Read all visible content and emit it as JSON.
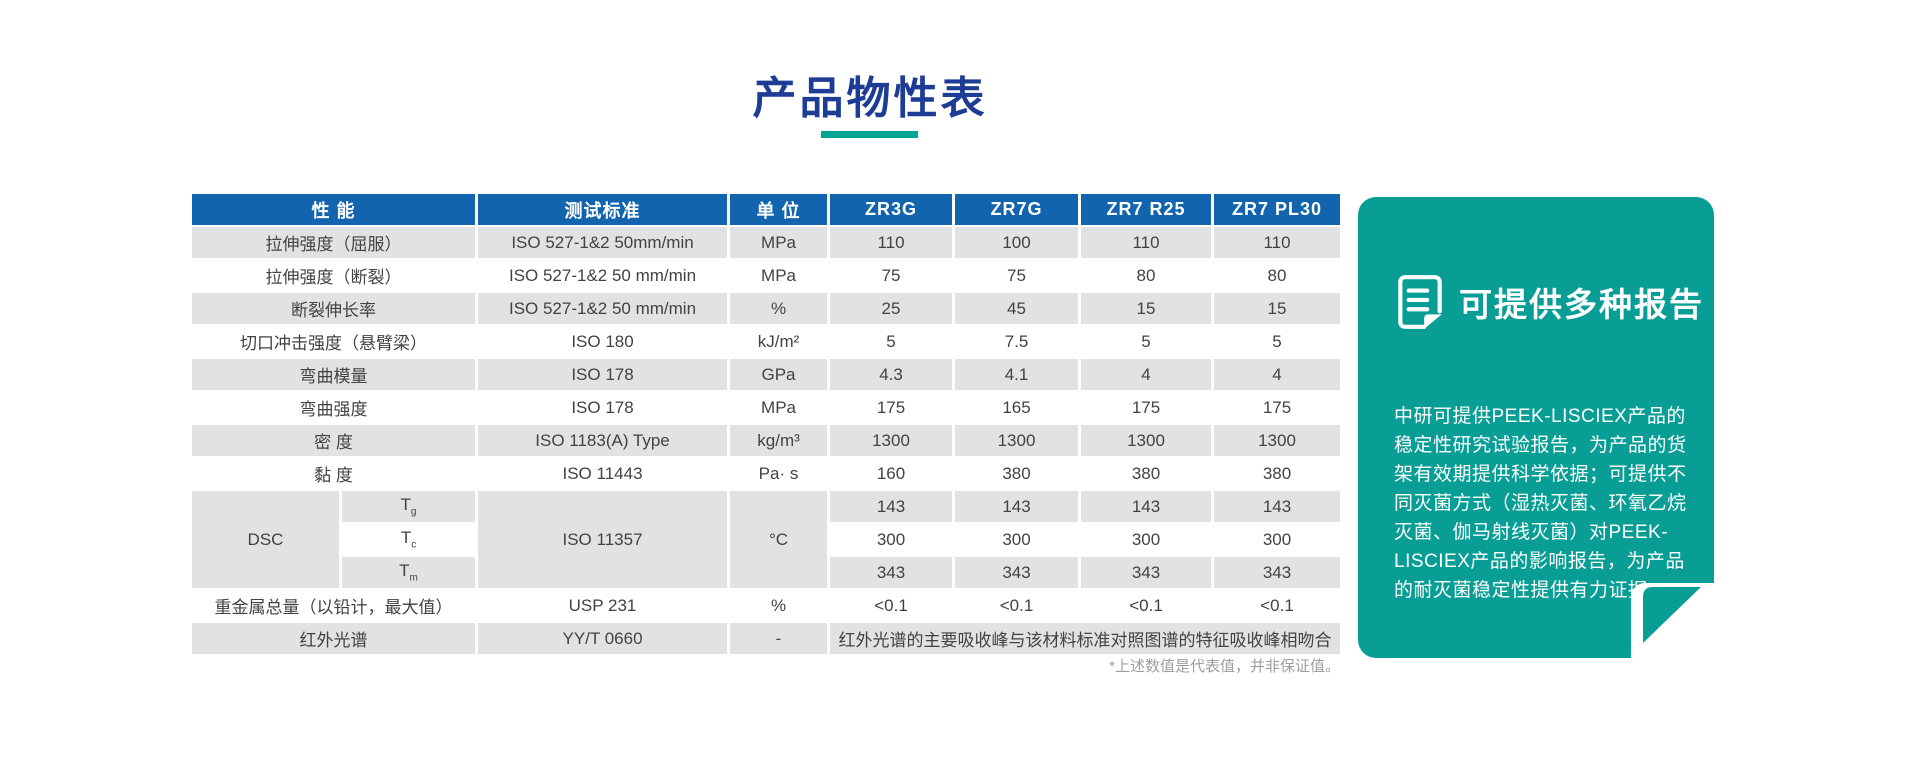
{
  "page": {
    "title": "产品物性表",
    "footnote": "*上述数值是代表值，并非保证值。"
  },
  "colors": {
    "title_blue": "#1C3C96",
    "accent_teal": "#00A596",
    "table_header_blue": "#1364AE",
    "row_gray": "#E1E2E4",
    "card_teal": "#089E95",
    "cell_text": "#404245",
    "footnote_gray": "#9E9E9E"
  },
  "table": {
    "headers": [
      "性 能",
      "测试标准",
      "单 位",
      "ZR3G",
      "ZR7G",
      "ZR7 R25",
      "ZR7 PL30"
    ],
    "shades": [
      "gray",
      "white",
      "gray",
      "white",
      "gray",
      "white",
      "gray",
      "white",
      "gray",
      "white",
      "gray",
      "white",
      "gray"
    ],
    "rows": [
      [
        {
          "t": "拉伸强度（屈服）",
          "col": 2
        },
        {
          "t": "ISO 527-1&2 50mm/min"
        },
        {
          "t": "MPa"
        },
        {
          "t": "110"
        },
        {
          "t": "100"
        },
        {
          "t": "110"
        },
        {
          "t": "110"
        }
      ],
      [
        {
          "t": "拉伸强度（断裂）",
          "col": 2
        },
        {
          "t": "ISO 527-1&2 50 mm/min"
        },
        {
          "t": "MPa"
        },
        {
          "t": "75"
        },
        {
          "t": "75"
        },
        {
          "t": "80"
        },
        {
          "t": "80"
        }
      ],
      [
        {
          "t": "断裂伸长率",
          "col": 2
        },
        {
          "t": "ISO 527-1&2 50 mm/min"
        },
        {
          "t": "%"
        },
        {
          "t": "25"
        },
        {
          "t": "45"
        },
        {
          "t": "15"
        },
        {
          "t": "15"
        }
      ],
      [
        {
          "t": "切口冲击强度（悬臂梁）",
          "col": 2
        },
        {
          "t": "ISO 180"
        },
        {
          "t": "kJ/m²"
        },
        {
          "t": "5"
        },
        {
          "t": "7.5"
        },
        {
          "t": "5"
        },
        {
          "t": "5"
        }
      ],
      [
        {
          "t": "弯曲模量",
          "col": 2
        },
        {
          "t": "ISO 178"
        },
        {
          "t": "GPa"
        },
        {
          "t": "4.3"
        },
        {
          "t": "4.1"
        },
        {
          "t": "4"
        },
        {
          "t": "4"
        }
      ],
      [
        {
          "t": "弯曲强度",
          "col": 2
        },
        {
          "t": "ISO 178"
        },
        {
          "t": "MPa"
        },
        {
          "t": "175"
        },
        {
          "t": "165"
        },
        {
          "t": "175"
        },
        {
          "t": "175"
        }
      ],
      [
        {
          "t": "密 度",
          "col": 2
        },
        {
          "t": "ISO 1183(A) Type"
        },
        {
          "t": "kg/m³"
        },
        {
          "t": "1300"
        },
        {
          "t": "1300"
        },
        {
          "t": "1300"
        },
        {
          "t": "1300"
        }
      ],
      [
        {
          "t": "黏 度",
          "col": 2
        },
        {
          "t": "ISO 11443"
        },
        {
          "t": "Pa· s"
        },
        {
          "t": "160"
        },
        {
          "t": "380"
        },
        {
          "t": "380"
        },
        {
          "t": "380"
        }
      ],
      [
        {
          "t": "DSC",
          "row": 3
        },
        {
          "t": "T",
          "sub": "g"
        },
        {
          "t": "ISO 11357",
          "row": 3
        },
        {
          "t": "°C",
          "row": 3
        },
        {
          "t": "143"
        },
        {
          "t": "143"
        },
        {
          "t": "143"
        },
        {
          "t": "143"
        }
      ],
      [
        {
          "t": "T",
          "sub": "c"
        },
        {
          "t": "300"
        },
        {
          "t": "300"
        },
        {
          "t": "300"
        },
        {
          "t": "300"
        }
      ],
      [
        {
          "t": "T",
          "sub": "m"
        },
        {
          "t": "343"
        },
        {
          "t": "343"
        },
        {
          "t": "343"
        },
        {
          "t": "343"
        }
      ],
      [
        {
          "t": "重金属总量（以铅计，最大值）",
          "col": 2
        },
        {
          "t": "USP 231"
        },
        {
          "t": "%"
        },
        {
          "t": "<0.1"
        },
        {
          "t": "<0.1"
        },
        {
          "t": "<0.1"
        },
        {
          "t": "<0.1"
        }
      ],
      [
        {
          "t": "红外光谱",
          "col": 2
        },
        {
          "t": "YY/T 0660"
        },
        {
          "t": "-"
        },
        {
          "t": "红外光谱的主要吸收峰与该材料标准对照图谱的特征吸收峰相吻合",
          "col": 4
        }
      ]
    ]
  },
  "card": {
    "title": "可提供多种报告",
    "icon": "document-icon",
    "body": "中研可提供PEEK-LISCIEX产品的稳定性研究试验报告，为产品的货架有效期提供科学依据；可提供不同灭菌方式（湿热灭菌、环氧乙烷灭菌、伽马射线灭菌）对PEEK-LISCIEX产品的影响报告，为产品的耐灭菌稳定性提供有力证据。"
  }
}
